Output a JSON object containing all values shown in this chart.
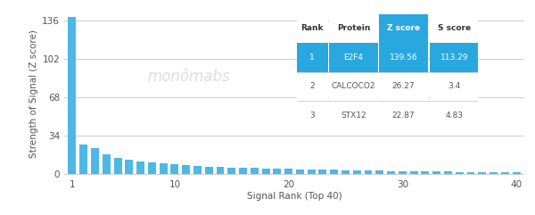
{
  "bar_color": "#4db8e8",
  "highlight_color": "#29a8e0",
  "background_color": "#ffffff",
  "ylabel": "Strength of Signal (Z score)",
  "xlabel": "Signal Rank (Top 40)",
  "yticks": [
    0,
    34,
    68,
    102,
    136
  ],
  "xticks": [
    1,
    10,
    20,
    30,
    40
  ],
  "xlim": [
    0.3,
    40.7
  ],
  "ylim": [
    -2,
    145
  ],
  "watermark": "monômabs",
  "n_bars": 40,
  "bar_values": [
    139.56,
    26.27,
    22.87,
    17.5,
    14.2,
    12.8,
    11.3,
    10.1,
    9.2,
    8.5,
    7.8,
    7.2,
    6.7,
    6.3,
    5.9,
    5.6,
    5.3,
    5.0,
    4.8,
    4.6,
    4.4,
    4.2,
    4.0,
    3.8,
    3.6,
    3.4,
    3.2,
    3.0,
    2.8,
    2.7,
    2.5,
    2.4,
    2.2,
    2.1,
    2.0,
    1.9,
    1.8,
    1.7,
    1.6,
    1.5
  ],
  "table_ranks": [
    "1",
    "2",
    "3"
  ],
  "table_proteins": [
    "E2F4",
    "CALCOCO2",
    "STX12"
  ],
  "table_zscores": [
    "139.56",
    "26.27",
    "22.87"
  ],
  "table_sscores": [
    "113.29",
    "3.4",
    "4.83"
  ],
  "table_header": [
    "Rank",
    "Protein",
    "Z score",
    "S score"
  ],
  "table_row_bg": "#29a8e0",
  "grid_color": "#cccccc",
  "text_color": "#555555",
  "sep_color": "#cccccc"
}
